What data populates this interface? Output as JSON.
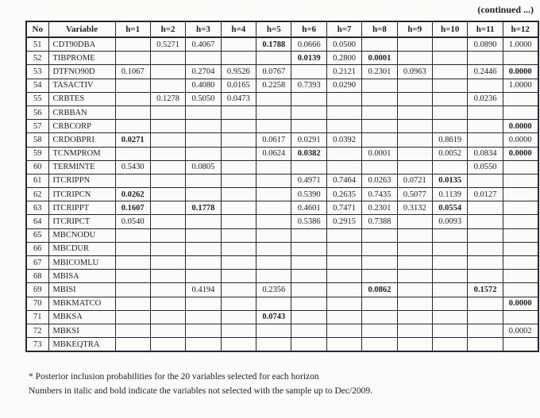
{
  "continued_label": "(continued ...)",
  "table": {
    "headers": [
      "No",
      "Variable",
      "h=1",
      "h=2",
      "h=3",
      "h=4",
      "h=5",
      "h=6",
      "h=7",
      "h=8",
      "h=9",
      "h=10",
      "h=11",
      "h=12"
    ],
    "rows": [
      {
        "no": "51",
        "variable": "CDT90DBA",
        "cells": [
          "",
          "0.5271",
          "0.4067",
          "",
          "0.1788",
          "0.0666",
          "0.0500",
          "",
          "",
          "",
          "0.0890",
          "1.0000"
        ],
        "bold_cols": [
          4
        ]
      },
      {
        "no": "52",
        "variable": "TIBPROME",
        "cells": [
          "",
          "",
          "",
          "",
          "",
          "0.0139",
          "0.2800",
          "0.0001",
          "",
          "",
          "",
          ""
        ],
        "bold_cols": [
          5,
          7
        ]
      },
      {
        "no": "53",
        "variable": "DTFNO90D",
        "cells": [
          "0.1067",
          "",
          "0.2704",
          "0.9526",
          "0.0767",
          "",
          "0.2121",
          "0.2301",
          "0.0963",
          "",
          "0.2446",
          "0.0000"
        ],
        "bold_cols": [
          11
        ]
      },
      {
        "no": "54",
        "variable": "TASACTIV",
        "cells": [
          "",
          "",
          "0.4080",
          "0.0165",
          "0.2258",
          "0.7393",
          "0.0290",
          "",
          "",
          "",
          "",
          "1.0000"
        ],
        "bold_cols": []
      },
      {
        "no": "55",
        "variable": "CRBTES",
        "cells": [
          "",
          "0.1278",
          "0.5050",
          "0.0473",
          "",
          "",
          "",
          "",
          "",
          "",
          "0.0236",
          ""
        ],
        "bold_cols": []
      },
      {
        "no": "56",
        "variable": "CRBBAN",
        "cells": [
          "",
          "",
          "",
          "",
          "",
          "",
          "",
          "",
          "",
          "",
          "",
          ""
        ],
        "bold_cols": []
      },
      {
        "no": "57",
        "variable": "CRBCORP",
        "cells": [
          "",
          "",
          "",
          "",
          "",
          "",
          "",
          "",
          "",
          "",
          "",
          "0.0000"
        ],
        "bold_cols": [
          11
        ]
      },
      {
        "no": "58",
        "variable": "CRDOBPRI",
        "cells": [
          "0.0271",
          "",
          "",
          "",
          "0.0617",
          "0.0291",
          "0.0392",
          "",
          "",
          "0.8619",
          "",
          "0.0000"
        ],
        "bold_cols": [
          0
        ]
      },
      {
        "no": "59",
        "variable": "TCNMPROM",
        "cells": [
          "",
          "",
          "",
          "",
          "0.0624",
          "0.0382",
          "",
          "0.0001",
          "",
          "0.0052",
          "0.0834",
          "0.0000"
        ],
        "bold_cols": [
          5,
          11
        ]
      },
      {
        "no": "60",
        "variable": "TERMINTE",
        "cells": [
          "0.5430",
          "",
          "0.0805",
          "",
          "",
          "",
          "",
          "",
          "",
          "",
          "0.0550",
          ""
        ],
        "bold_cols": []
      },
      {
        "no": "61",
        "variable": "ITCRIPPN",
        "cells": [
          "",
          "",
          "",
          "",
          "",
          "0.4971",
          "0.7464",
          "0.0263",
          "0.0721",
          "0.0135",
          "",
          ""
        ],
        "bold_cols": [
          9
        ]
      },
      {
        "no": "62",
        "variable": "ITCRIPCN",
        "cells": [
          "0.0262",
          "",
          "",
          "",
          "",
          "0.5390",
          "0.2635",
          "0.7435",
          "0.5077",
          "0.1139",
          "0.0127",
          ""
        ],
        "bold_cols": [
          0
        ]
      },
      {
        "no": "63",
        "variable": "ITCRIPPT",
        "cells": [
          "0.1607",
          "",
          "0.1778",
          "",
          "",
          "0.4601",
          "0.7471",
          "0.2301",
          "0.3132",
          "0.0554",
          "",
          ""
        ],
        "bold_cols": [
          0,
          2,
          9
        ]
      },
      {
        "no": "64",
        "variable": "ITCRIPCT",
        "cells": [
          "0.0540",
          "",
          "",
          "",
          "",
          "0.5386",
          "0.2915",
          "0.7388",
          "",
          "0.0093",
          "",
          ""
        ],
        "bold_cols": []
      },
      {
        "no": "65",
        "variable": "MBCNODU",
        "cells": [
          "",
          "",
          "",
          "",
          "",
          "",
          "",
          "",
          "",
          "",
          "",
          ""
        ],
        "bold_cols": []
      },
      {
        "no": "66",
        "variable": "MBCDUR",
        "cells": [
          "",
          "",
          "",
          "",
          "",
          "",
          "",
          "",
          "",
          "",
          "",
          ""
        ],
        "bold_cols": []
      },
      {
        "no": "67",
        "variable": "MBICOMLU",
        "cells": [
          "",
          "",
          "",
          "",
          "",
          "",
          "",
          "",
          "",
          "",
          "",
          ""
        ],
        "bold_cols": []
      },
      {
        "no": "68",
        "variable": "MBISA",
        "cells": [
          "",
          "",
          "",
          "",
          "",
          "",
          "",
          "",
          "",
          "",
          "",
          ""
        ],
        "bold_cols": []
      },
      {
        "no": "69",
        "variable": "MBISI",
        "cells": [
          "",
          "",
          "0.4194",
          "",
          "0.2356",
          "",
          "",
          "0.0862",
          "",
          "",
          "0.1572",
          ""
        ],
        "bold_cols": [
          7,
          10
        ]
      },
      {
        "no": "70",
        "variable": "MBKMATCO",
        "cells": [
          "",
          "",
          "",
          "",
          "",
          "",
          "",
          "",
          "",
          "",
          "",
          "0.0000"
        ],
        "bold_cols": [
          11
        ]
      },
      {
        "no": "71",
        "variable": "MBKSA",
        "cells": [
          "",
          "",
          "",
          "",
          "0.0743",
          "",
          "",
          "",
          "",
          "",
          "",
          ""
        ],
        "bold_cols": [
          4
        ]
      },
      {
        "no": "72",
        "variable": "MBKSI",
        "cells": [
          "",
          "",
          "",
          "",
          "",
          "",
          "",
          "",
          "",
          "",
          "",
          "0.0002"
        ],
        "bold_cols": []
      },
      {
        "no": "73",
        "variable": "MBKEQTRA",
        "cells": [
          "",
          "",
          "",
          "",
          "",
          "",
          "",
          "",
          "",
          "",
          "",
          ""
        ],
        "bold_cols": []
      }
    ]
  },
  "footnotes": [
    "* Posterior inclusion probabilities for the 20 variables selected for each horizon",
    "Numbers in italic and bold indicate the variables not selected with the sample up to Dec/2009."
  ]
}
